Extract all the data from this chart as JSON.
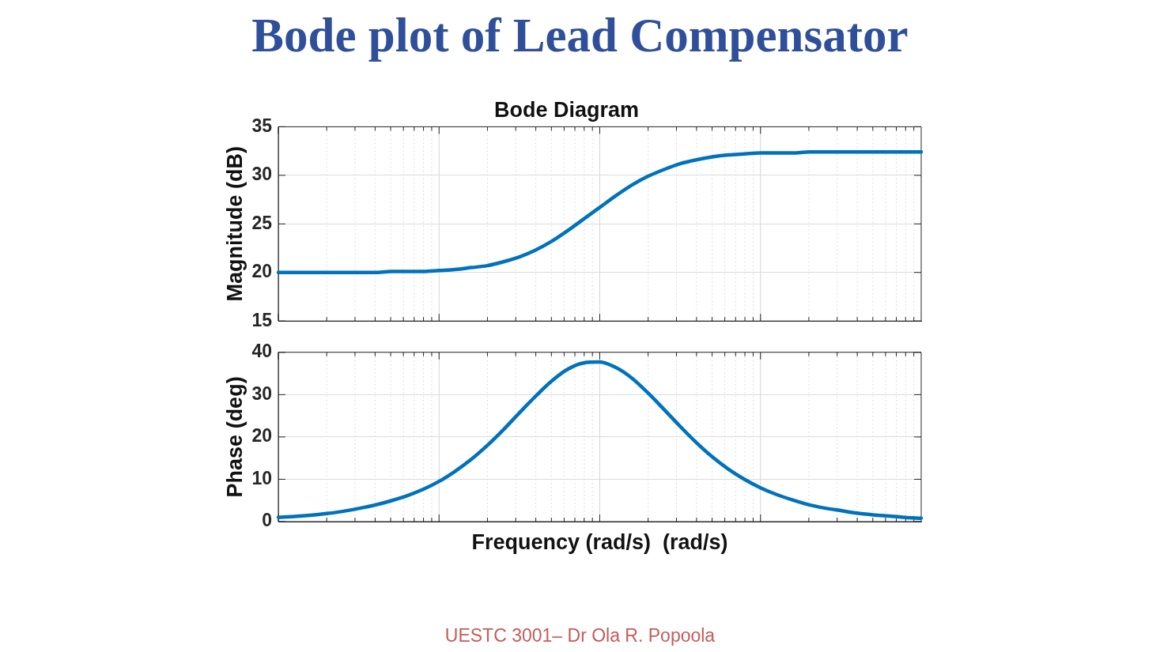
{
  "chart_data": [
    {
      "type": "line",
      "title": "Bode plot of Lead Compensator",
      "subtitle": "Bode Diagram",
      "ylabel": "Magnitude (dB)",
      "categories": [
        null,
        null,
        null,
        null,
        null,
        null,
        null,
        null,
        null,
        null,
        null,
        null,
        null,
        null,
        null,
        null,
        null,
        null,
        null,
        null,
        null,
        null,
        null,
        null,
        null,
        null,
        null,
        null,
        null,
        null,
        null,
        null,
        null,
        null,
        null,
        null,
        null,
        null,
        null,
        null,
        null
      ],
      "values": [
        20.0,
        20.0,
        20.0,
        20.0,
        20.0,
        20.0,
        20.0,
        20.1,
        20.1,
        20.1,
        20.2,
        20.3,
        20.5,
        20.7,
        21.1,
        21.6,
        22.3,
        23.2,
        24.3,
        25.5,
        26.7,
        27.9,
        29.0,
        29.9,
        30.6,
        31.2,
        31.6,
        31.9,
        32.1,
        32.2,
        32.3,
        32.3,
        32.3,
        32.4,
        32.4,
        32.4,
        32.4,
        32.4,
        32.4,
        32.4,
        32.4
      ],
      "color": "#0072bd",
      "ylim": [
        15,
        35
      ],
      "yticks": [
        15,
        20,
        25,
        30,
        35
      ],
      "grid": true,
      "tick_labels": "y"
    },
    {
      "type": "line",
      "xlabel": "Frequency (rad/s)  (rad/s)",
      "ylabel": "Phase (deg)",
      "categories": [
        null,
        null,
        null,
        null,
        null,
        null,
        null,
        null,
        null,
        null,
        null,
        null,
        null,
        null,
        null,
        null,
        null,
        null,
        null,
        null,
        null,
        null,
        null,
        null,
        null,
        null,
        null,
        null,
        null,
        null,
        null,
        null,
        null,
        null,
        null,
        null,
        null,
        null,
        null,
        null,
        null
      ],
      "values": [
        1.0,
        1.2,
        1.5,
        1.9,
        2.4,
        3.1,
        3.9,
        4.9,
        6.1,
        7.6,
        9.5,
        11.9,
        14.7,
        18.0,
        21.7,
        25.7,
        29.6,
        33.2,
        36.0,
        37.5,
        37.7,
        36.4,
        33.9,
        30.4,
        26.5,
        22.5,
        18.7,
        15.3,
        12.4,
        10.0,
        8.0,
        6.4,
        5.1,
        4.0,
        3.2,
        2.6,
        2.0,
        1.6,
        1.3,
        1.0,
        0.8
      ],
      "color": "#0072bd",
      "ylim": [
        0,
        40
      ],
      "yticks": [
        0,
        10,
        20,
        30,
        40
      ],
      "grid": true,
      "tick_labels": "y",
      "annotations": [
        "UESTC 3001– Dr Ola R. Popoola"
      ]
    }
  ]
}
